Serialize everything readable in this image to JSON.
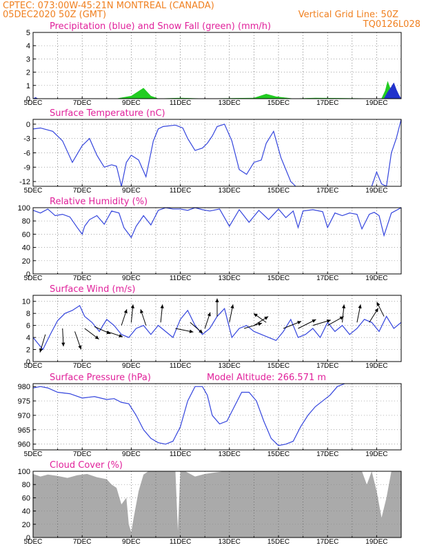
{
  "header": {
    "line1_left": "CPTEC:   073:00W-45:21N   MONTREAL (CANADA)",
    "line2_left": "05DEC2020 50Z (GMT)",
    "line2_right": "Vertical Grid Line: 50Z",
    "line3_right": "TQ0126L028",
    "model_altitude": "Model Altitude: 266.571 m"
  },
  "colors": {
    "header": "#f08020",
    "titles": "#e0209a",
    "line": "#3344dd",
    "precip": "#2233cc",
    "snow": "#22cc22",
    "cloud": "#aaaaaa"
  },
  "x_axis": {
    "day_start": 5,
    "day_end": 20,
    "tick_labels": [
      "5DEC",
      "7DEC",
      "9DEC",
      "11DEC",
      "13DEC",
      "15DEC",
      "17DEC",
      "19DEC"
    ],
    "tick_days": [
      5,
      7,
      9,
      11,
      13,
      15,
      17,
      19
    ]
  },
  "chart_data": [
    {
      "id": "precip",
      "type": "area",
      "title": "Precipitation (blue) and Snow Fall (green) (mm/h)",
      "ylim": [
        0,
        5
      ],
      "yticks": [
        "0",
        "1",
        "2",
        "3",
        "4",
        "5"
      ],
      "series": [
        {
          "name": "Precipitation",
          "x": [
            5,
            5.1,
            5.2,
            17.9,
            19.3,
            19.45,
            19.6,
            19.7,
            19.8,
            19.9,
            20
          ],
          "y": [
            0,
            0.1,
            0,
            0,
            0,
            0.5,
            0.9,
            1.2,
            0.7,
            0.3,
            0
          ]
        },
        {
          "name": "Snow Fall",
          "x": [
            5,
            8.4,
            9.0,
            9.5,
            9.8,
            10.1,
            11.0,
            12.0,
            14.0,
            14.5,
            14.9,
            15.6,
            16.5,
            19.2,
            19.35,
            19.45,
            19.55,
            19.7,
            19.85,
            20
          ],
          "y": [
            0,
            0,
            0.2,
            0.8,
            0.2,
            0,
            0.05,
            0,
            0.05,
            0.35,
            0.15,
            0,
            0.05,
            0,
            0.6,
            1.3,
            0.8,
            0.5,
            0.15,
            0
          ]
        }
      ]
    },
    {
      "id": "temp",
      "type": "line",
      "title": "Surface Temperature (nC)",
      "ylim": [
        -13,
        1
      ],
      "yticks": [
        "0",
        "-3",
        "-6",
        "-9",
        "-12"
      ],
      "series": [
        {
          "name": "Temperature",
          "x": [
            5,
            5.3,
            5.8,
            6.2,
            6.6,
            7.0,
            7.3,
            7.6,
            7.9,
            8.2,
            8.4,
            8.6,
            8.8,
            9.0,
            9.3,
            9.6,
            9.9,
            10.1,
            10.3,
            10.8,
            11.1,
            11.3,
            11.6,
            11.9,
            12.1,
            12.3,
            12.5,
            12.8,
            13.1,
            13.4,
            13.7,
            14.0,
            14.3,
            14.5,
            14.8,
            15.1,
            15.3,
            15.5,
            15.7
          ],
          "y": [
            -1,
            -0.8,
            -1.5,
            -3.5,
            -8.0,
            -4.5,
            -3.0,
            -6.5,
            -9.0,
            -8.5,
            -8.8,
            -13,
            -8,
            -6.5,
            -7.5,
            -11.0,
            -3.5,
            -1.0,
            -0.5,
            -0.2,
            -0.8,
            -3.0,
            -5.5,
            -5.0,
            -4.0,
            -2.5,
            -0.5,
            0,
            -3.5,
            -9.5,
            -10.5,
            -8.0,
            -7.5,
            -4.0,
            -1.5,
            -7.0,
            -9.5,
            -12.0,
            -13
          ]
        },
        {
          "name": "Temperature (late)",
          "x": [
            18.8,
            19.0,
            19.2,
            19.4,
            19.6,
            19.8,
            20.0
          ],
          "y": [
            -13,
            -10.0,
            -12.5,
            -13,
            -6.0,
            -3.0,
            1.0
          ]
        }
      ]
    },
    {
      "id": "rh",
      "type": "line",
      "title": "Relative Humidity (%)",
      "ylim": [
        0,
        100
      ],
      "yticks": [
        "0",
        "20",
        "40",
        "60",
        "80",
        "100"
      ],
      "series": [
        {
          "name": "Relative Humidity",
          "x": [
            5,
            5.3,
            5.6,
            5.9,
            6.2,
            6.5,
            6.8,
            7.0,
            7.1,
            7.3,
            7.6,
            7.9,
            8.2,
            8.5,
            8.7,
            8.9,
            9.0,
            9.2,
            9.5,
            9.8,
            10.1,
            10.4,
            10.7,
            11.0,
            11.3,
            11.6,
            11.9,
            12.2,
            12.6,
            13.0,
            13.4,
            13.8,
            14.2,
            14.6,
            15.0,
            15.3,
            15.6,
            15.8,
            16.0,
            16.4,
            16.8,
            17.0,
            17.3,
            17.6,
            17.9,
            18.2,
            18.4,
            18.7,
            18.9,
            19.1,
            19.3,
            19.6,
            20.0
          ],
          "y": [
            96,
            92,
            98,
            88,
            90,
            86,
            70,
            60,
            72,
            82,
            88,
            75,
            95,
            92,
            70,
            60,
            55,
            72,
            88,
            74,
            96,
            100,
            98,
            98,
            96,
            100,
            97,
            95,
            98,
            72,
            97,
            78,
            96,
            82,
            98,
            85,
            95,
            70,
            95,
            97,
            94,
            70,
            92,
            88,
            92,
            90,
            68,
            90,
            93,
            88,
            58,
            92,
            100
          ]
        }
      ]
    },
    {
      "id": "wind",
      "type": "line",
      "title": "Surface Wind (m/s)",
      "ylim": [
        0,
        11
      ],
      "yticks": [
        "0",
        "2",
        "4",
        "6",
        "8",
        "10"
      ],
      "series": [
        {
          "name": "Wind speed",
          "x": [
            5,
            5.2,
            5.4,
            5.7,
            6.0,
            6.3,
            6.6,
            6.9,
            7.1,
            7.4,
            7.7,
            8.0,
            8.3,
            8.6,
            8.9,
            9.2,
            9.5,
            9.8,
            10.1,
            10.4,
            10.7,
            11.0,
            11.3,
            11.6,
            11.9,
            12.2,
            12.5,
            12.8,
            13.1,
            13.4,
            13.7,
            14.0,
            14.3,
            14.6,
            14.9,
            15.2,
            15.5,
            15.8,
            16.1,
            16.4,
            16.7,
            17.0,
            17.3,
            17.6,
            17.9,
            18.2,
            18.5,
            18.8,
            19.1,
            19.4,
            19.7,
            20.0
          ],
          "y": [
            4.0,
            3.0,
            2.0,
            4.5,
            6.8,
            8.0,
            8.5,
            9.3,
            7.5,
            6.5,
            5.0,
            7.0,
            6.0,
            4.5,
            4.0,
            5.5,
            6.0,
            4.5,
            6.0,
            5.0,
            4.0,
            7.0,
            8.5,
            6.0,
            4.5,
            5.5,
            7.5,
            8.8,
            4.0,
            5.5,
            6.0,
            5.0,
            4.5,
            4.0,
            3.5,
            5.0,
            7.0,
            4.0,
            4.5,
            5.5,
            4.0,
            6.5,
            5.0,
            6.0,
            4.5,
            5.5,
            7.0,
            6.5,
            5.0,
            7.5,
            5.5,
            6.5
          ]
        }
      ],
      "vectors": [
        {
          "day": 5.5,
          "y": 4.5,
          "dx": -0.3,
          "dy": -1.0
        },
        {
          "day": 6.2,
          "y": 5.5,
          "dx": 0.05,
          "dy": -1.0
        },
        {
          "day": 6.7,
          "y": 5.0,
          "dx": 0.35,
          "dy": -1.0
        },
        {
          "day": 7.1,
          "y": 5.5,
          "dx": 0.8,
          "dy": -0.6
        },
        {
          "day": 7.5,
          "y": 5.8,
          "dx": 0.9,
          "dy": -0.4
        },
        {
          "day": 8.0,
          "y": 5.0,
          "dx": 0.9,
          "dy": -0.3
        },
        {
          "day": 8.6,
          "y": 6.0,
          "dx": 0.3,
          "dy": 0.9
        },
        {
          "day": 9.0,
          "y": 6.5,
          "dx": 0.1,
          "dy": 1.0
        },
        {
          "day": 9.6,
          "y": 6.0,
          "dx": -0.3,
          "dy": 0.9
        },
        {
          "day": 10.2,
          "y": 6.5,
          "dx": 0.1,
          "dy": 1.0
        },
        {
          "day": 10.8,
          "y": 5.5,
          "dx": 1.0,
          "dy": -0.2
        },
        {
          "day": 11.4,
          "y": 6.5,
          "dx": 0.7,
          "dy": -0.6
        },
        {
          "day": 12.0,
          "y": 5.5,
          "dx": 0.3,
          "dy": 0.9
        },
        {
          "day": 12.5,
          "y": 7.5,
          "dx": 0.0,
          "dy": 1.0
        },
        {
          "day": 13.0,
          "y": 6.5,
          "dx": 0.2,
          "dy": 1.0
        },
        {
          "day": 13.6,
          "y": 5.5,
          "dx": 1.0,
          "dy": 0.3
        },
        {
          "day": 14.0,
          "y": 6.0,
          "dx": 0.8,
          "dy": 0.5
        },
        {
          "day": 14.5,
          "y": 6.5,
          "dx": -0.7,
          "dy": 0.5
        },
        {
          "day": 15.2,
          "y": 5.5,
          "dx": 1.0,
          "dy": 0.4
        },
        {
          "day": 15.8,
          "y": 5.5,
          "dx": 1.0,
          "dy": 0.5
        },
        {
          "day": 16.4,
          "y": 6.0,
          "dx": 1.0,
          "dy": 0.3
        },
        {
          "day": 17.0,
          "y": 6.0,
          "dx": 0.9,
          "dy": 0.5
        },
        {
          "day": 17.6,
          "y": 6.5,
          "dx": 0.1,
          "dy": 1.0
        },
        {
          "day": 18.2,
          "y": 6.5,
          "dx": 0.2,
          "dy": 1.0
        },
        {
          "day": 18.7,
          "y": 6.5,
          "dx": 0.5,
          "dy": 0.8
        },
        {
          "day": 19.3,
          "y": 7.5,
          "dx": -0.4,
          "dy": 0.8
        }
      ]
    },
    {
      "id": "pressure",
      "type": "line",
      "title": "Surface Pressure (hPa)",
      "ylim": [
        958,
        981
      ],
      "yticks": [
        "960",
        "965",
        "970",
        "975",
        "980"
      ],
      "series": [
        {
          "name": "Pressure",
          "x": [
            5,
            5.3,
            5.6,
            6.0,
            6.5,
            7.0,
            7.5,
            8.0,
            8.3,
            8.6,
            8.9,
            9.2,
            9.5,
            9.8,
            10.1,
            10.4,
            10.7,
            11.0,
            11.3,
            11.6,
            11.9,
            12.1,
            12.3,
            12.6,
            12.9,
            13.2,
            13.5,
            13.8,
            14.1,
            14.4,
            14.7,
            15.0,
            15.3,
            15.6,
            15.9,
            16.2,
            16.5,
            16.8,
            17.1,
            17.4,
            17.7
          ],
          "y": [
            979.5,
            980,
            979.5,
            978,
            977.5,
            976,
            976.5,
            975.5,
            975.8,
            974.5,
            974,
            970,
            965,
            962,
            960.5,
            960,
            961,
            966,
            975,
            980,
            980,
            977,
            970,
            967,
            968,
            973,
            978,
            978,
            975,
            968,
            962,
            959.5,
            960,
            961,
            966,
            970,
            973,
            975,
            977,
            980,
            982
          ]
        }
      ]
    },
    {
      "id": "cloud",
      "type": "area",
      "title": "Cloud Cover (%)",
      "ylim": [
        0,
        100
      ],
      "yticks": [
        "0",
        "20",
        "40",
        "60",
        "80",
        "100"
      ],
      "series": [
        {
          "name": "Cloud Cover",
          "x": [
            5,
            5.3,
            5.6,
            6.0,
            6.4,
            6.8,
            7.2,
            7.6,
            8.0,
            8.2,
            8.4,
            8.6,
            8.8,
            8.9,
            9.0,
            9.1,
            9.3,
            9.5,
            9.7,
            10.0,
            10.4,
            10.8,
            10.9,
            11.0,
            11.2,
            11.6,
            12.0,
            12.4,
            12.8,
            13.2,
            13.6,
            14.0,
            14.4,
            14.8,
            15.2,
            15.6,
            16.0,
            16.4,
            16.8,
            17.2,
            17.6,
            18.0,
            18.2,
            18.4,
            18.6,
            18.8,
            19.0,
            19.2,
            19.4,
            19.6,
            19.8,
            20.0
          ],
          "y": [
            96,
            92,
            95,
            93,
            90,
            94,
            96,
            91,
            88,
            80,
            75,
            50,
            60,
            20,
            8,
            30,
            70,
            95,
            100,
            100,
            100,
            100,
            10,
            100,
            100,
            92,
            96,
            98,
            100,
            100,
            100,
            100,
            100,
            100,
            100,
            100,
            100,
            100,
            100,
            100,
            100,
            100,
            100,
            100,
            80,
            100,
            70,
            30,
            60,
            100,
            100,
            100
          ]
        }
      ]
    }
  ]
}
